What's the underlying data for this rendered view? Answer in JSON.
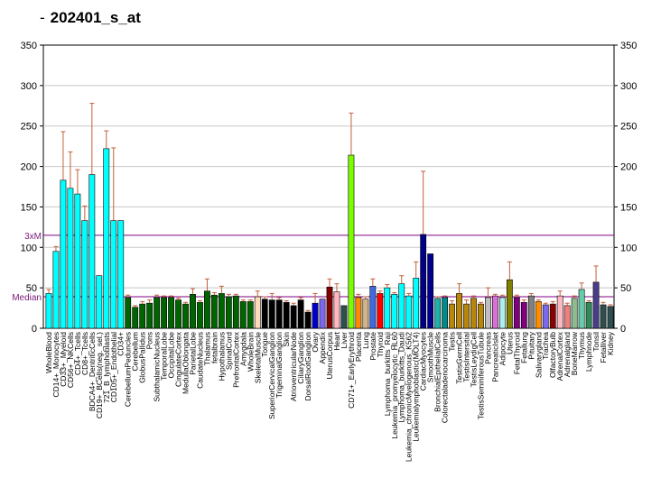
{
  "header": {
    "title": "202401_s_at"
  },
  "chart_data": {
    "type": "bar",
    "title": "202401_s_at",
    "ylim": [
      0,
      350
    ],
    "yticks": [
      0,
      50,
      100,
      150,
      200,
      250,
      300,
      350
    ],
    "grid": true,
    "reference_lines": [
      {
        "label": "3xM",
        "value": 115,
        "color": "#800080"
      },
      {
        "label": "Median",
        "value": 39,
        "color": "#800080"
      }
    ],
    "categories": [
      "WholeBlood",
      "CD14+_Monocytes",
      "CD33+_Myeloid",
      "CD56+_NKCells",
      "CD4+_Tcells",
      "CD8+_Tcells",
      "BDCA4+_DentriticCells",
      "CD19+_BCells(neg._sel.)",
      "721_B_lymphoblasts",
      "CD105+_Endothelial",
      "CD34+",
      "CerebellumPeduncles",
      "Cerebellum",
      "GlobusPallidus",
      "Pons",
      "SubthalamicNucleus",
      "TemporalLobe",
      "OccipitalLobe",
      "CingulateCortex",
      "MedullaOblongata",
      "ParietalLobe",
      "CaudateNucleus",
      "Thalamus",
      "fetalbrain",
      "Hypothalamus",
      "SpinalCord",
      "PrefrontalCortex",
      "Amygdala",
      "WholeBrain",
      "SkeletalMuscle",
      "Tongue",
      "SuperiorCervicalGanglion",
      "TrigeminalGanglion",
      "Skin",
      "AtrioventricularNode",
      "CiliaryGanglion",
      "DorsalRootGanglion",
      "Ovary",
      "Appendix",
      "UterusCorpus",
      "Heart",
      "Liver",
      "CD71+_EarlyErythroid",
      "Placenta",
      "Lung",
      "Prostate",
      "Thyroid",
      "Lymphoma_burkitts_Raji",
      "Leukemia_promyelocytic_HL60",
      "Lymphoma_burkitts_Daudi",
      "Leukemia_chronicMyelogenous_K562",
      "Leukemialymphoblastic(MOLT4)",
      "CardiacMyocytes",
      "SmoothMuscle",
      "BronchialEpithelialCells",
      "Colorectaladenocarcinoma",
      "Testis",
      "TestisGermCell",
      "TestisIntersitial",
      "TestisLeydigCell",
      "TestisSeminiferousTubule",
      "Pancreas",
      "PancreaticIslet",
      "Adipocyte",
      "Uterus",
      "FetalThyroid",
      "Fetallung",
      "Pituitary",
      "Salivarygland",
      "Trachea",
      "OlfactoryBulb",
      "AdrenalCortex",
      "Adrenalgland",
      "BoneMarrow",
      "Thymus",
      "Lymphnode",
      "Tonsil",
      "Fetalliver",
      "Kidney"
    ],
    "values": [
      43,
      95,
      183,
      173,
      166,
      133,
      190,
      65,
      222,
      133,
      133,
      38,
      26,
      30,
      31,
      38,
      38,
      38,
      35,
      30,
      42,
      32,
      46,
      41,
      43,
      39,
      40,
      33,
      33,
      39,
      36,
      35,
      35,
      32,
      28,
      35,
      20,
      31,
      36,
      51,
      45,
      28,
      214,
      38,
      36,
      52,
      43,
      50,
      42,
      55,
      40,
      62,
      116,
      92,
      37,
      38,
      30,
      43,
      30,
      37,
      30,
      38,
      40,
      38,
      60,
      38,
      32,
      40,
      33,
      29,
      30,
      40,
      28,
      37,
      48,
      32,
      57,
      29,
      27
    ],
    "errors": [
      5,
      6,
      60,
      45,
      30,
      18,
      88,
      0,
      22,
      90,
      0,
      3,
      2,
      3,
      4,
      3,
      2,
      2,
      2,
      2,
      7,
      2,
      15,
      3,
      9,
      3,
      2,
      2,
      2,
      7,
      3,
      8,
      3,
      2,
      3,
      3,
      2,
      12,
      0,
      10,
      10,
      0,
      52,
      4,
      3,
      9,
      3,
      4,
      2,
      10,
      3,
      20,
      78,
      0,
      2,
      2,
      4,
      12,
      5,
      3,
      2,
      12,
      2,
      3,
      22,
      3,
      3,
      3,
      2,
      2,
      3,
      6,
      3,
      3,
      8,
      2,
      20,
      3,
      2
    ],
    "colors": [
      "#00ffff",
      "#00ffff",
      "#00ffff",
      "#00ffff",
      "#00ffff",
      "#00ffff",
      "#00ffff",
      "#00ffff",
      "#00ffff",
      "#00ffff",
      "#00ffff",
      "#006400",
      "#006400",
      "#006400",
      "#006400",
      "#006400",
      "#006400",
      "#006400",
      "#006400",
      "#006400",
      "#006400",
      "#006400",
      "#006400",
      "#006400",
      "#006400",
      "#006400",
      "#006400",
      "#006400",
      "#006400",
      "#ffdab9",
      "#000000",
      "#000000",
      "#000000",
      "#000000",
      "#000000",
      "#000000",
      "#000000",
      "#0000cd",
      "#7b68ee",
      "#800000",
      "#ffb6c1",
      "#2f4f4f",
      "#7cfc00",
      "#ff8c00",
      "#d2b48c",
      "#4169e1",
      "#ff0000",
      "#00ffff",
      "#00ffff",
      "#00ffff",
      "#00ffff",
      "#00ffff",
      "#00008b",
      "#00008b",
      "#20b2aa",
      "#008b8b",
      "#b8860b",
      "#b8860b",
      "#b8860b",
      "#b8860b",
      "#b8860b",
      "#c0c0c0",
      "#da70d6",
      "#afeeee",
      "#808000",
      "#800080",
      "#800080",
      "#808080",
      "#ff8c00",
      "#7b68ee",
      "#8b0000",
      "#ffb6c1",
      "#f08080",
      "#8fbc8f",
      "#66cdaa",
      "#2e8b57",
      "#483d8b",
      "#2f4f4f",
      "#2f4f4f"
    ]
  }
}
